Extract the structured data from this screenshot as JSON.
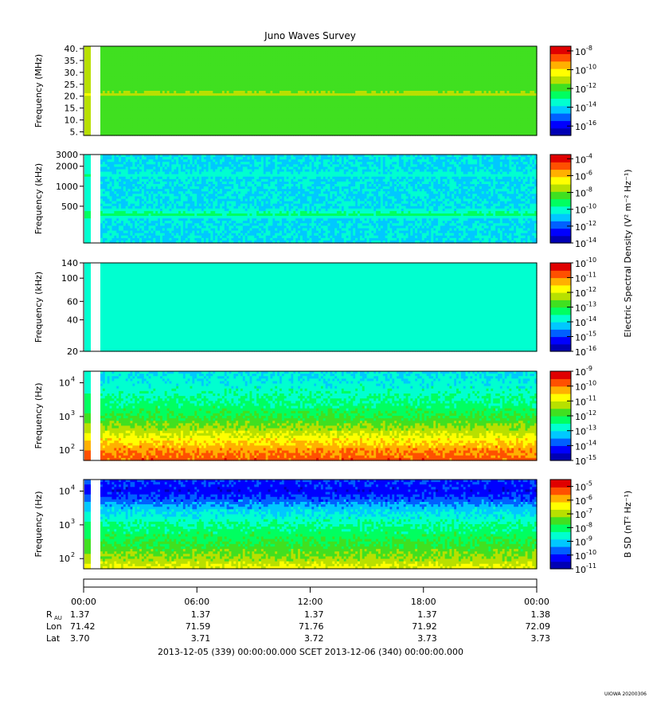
{
  "title": "Juno Waves Survey",
  "colormap": [
    "#0000b4",
    "#0000ff",
    "#0060ff",
    "#00c8ff",
    "#00ffd0",
    "#00ff60",
    "#40e020",
    "#b8e000",
    "#ffff00",
    "#ffb000",
    "#ff5000",
    "#e00000"
  ],
  "chart_data": [
    {
      "type": "heatmap",
      "name": "panel-1",
      "ylabel": "Frequency (MHz)",
      "yscale": "linear",
      "ylim": [
        3.5,
        41
      ],
      "yticks": [
        {
          "v": 5,
          "label": "5."
        },
        {
          "v": 10,
          "label": "10."
        },
        {
          "v": 15,
          "label": "15."
        },
        {
          "v": 20,
          "label": "20."
        },
        {
          "v": 25,
          "label": "25."
        },
        {
          "v": 30,
          "label": "30."
        },
        {
          "v": 35,
          "label": "35."
        },
        {
          "v": 40,
          "label": "40."
        }
      ],
      "colorbar": {
        "scale": "log",
        "range": [
          -17,
          -7.5
        ],
        "ticks": [
          {
            "e": -8
          },
          {
            "e": -10
          },
          {
            "e": -12
          },
          {
            "e": -14
          },
          {
            "e": -16
          }
        ],
        "label": ""
      },
      "background_level": 0.55,
      "bands": [
        {
          "f": 21,
          "level": 0.68,
          "w": 1.0
        },
        {
          "f": 9,
          "level": 0.49,
          "w": 0.6
        }
      ]
    },
    {
      "type": "heatmap",
      "name": "panel-2",
      "ylabel": "Frequency (kHz)",
      "yscale": "log",
      "ylim": [
        140,
        3000
      ],
      "yticks": [
        {
          "v": 500,
          "label": "500"
        },
        {
          "v": 1000,
          "label": "1000"
        },
        {
          "v": 2000,
          "label": "2000"
        },
        {
          "v": 3000,
          "label": "3000"
        }
      ],
      "colorbar": {
        "scale": "log",
        "range": [
          -14,
          -3.5
        ],
        "ticks": [
          {
            "e": -4
          },
          {
            "e": -6
          },
          {
            "e": -8
          },
          {
            "e": -10
          },
          {
            "e": -12
          },
          {
            "e": -14
          }
        ],
        "label": "Electric Spectral Density (V² m⁻² Hz⁻¹)"
      },
      "background_level": 0.33,
      "bands": [
        {
          "f": 1500,
          "level": 0.42,
          "w": 0.03
        },
        {
          "f": 380,
          "level": 0.45,
          "w": 0.08
        }
      ]
    },
    {
      "type": "heatmap",
      "name": "panel-3",
      "ylabel": "Frequency (kHz)",
      "yscale": "log",
      "ylim": [
        20,
        140
      ],
      "yticks": [
        {
          "v": 20,
          "label": "20"
        },
        {
          "v": 40,
          "label": "40"
        },
        {
          "v": 60,
          "label": "60"
        },
        {
          "v": 100,
          "label": "100"
        },
        {
          "v": 140,
          "label": "140"
        }
      ],
      "colorbar": {
        "scale": "log",
        "range": [
          -16,
          -10
        ],
        "ticks": [
          {
            "e": -10
          },
          {
            "e": -11
          },
          {
            "e": -12
          },
          {
            "e": -13
          },
          {
            "e": -14
          },
          {
            "e": -15
          },
          {
            "e": -16
          }
        ],
        "label": ""
      },
      "background_level": 0.36,
      "bands": []
    },
    {
      "type": "heatmap",
      "name": "panel-4",
      "ylabel": "Frequency (Hz)",
      "yscale": "log",
      "ylim": [
        50,
        22000
      ],
      "yticks": [
        {
          "v": 100,
          "label": "10",
          "sup": "2"
        },
        {
          "v": 1000,
          "label": "10",
          "sup": "3"
        },
        {
          "v": 10000,
          "label": "10",
          "sup": "4"
        }
      ],
      "colorbar": {
        "scale": "log",
        "range": [
          -15,
          -9
        ],
        "ticks": [
          {
            "e": -9
          },
          {
            "e": -10
          },
          {
            "e": -11
          },
          {
            "e": -12
          },
          {
            "e": -13
          },
          {
            "e": -14
          },
          {
            "e": -15
          }
        ],
        "label": ""
      },
      "profile": [
        [
          50,
          0.88
        ],
        [
          100,
          0.82
        ],
        [
          200,
          0.72
        ],
        [
          400,
          0.62
        ],
        [
          1000,
          0.5
        ],
        [
          3000,
          0.42
        ],
        [
          10000,
          0.36
        ],
        [
          22000,
          0.33
        ]
      ]
    },
    {
      "type": "heatmap",
      "name": "panel-5",
      "ylabel": "Frequency (Hz)",
      "yscale": "log",
      "ylim": [
        50,
        22000
      ],
      "yticks": [
        {
          "v": 100,
          "label": "10",
          "sup": "2"
        },
        {
          "v": 1000,
          "label": "10",
          "sup": "3"
        },
        {
          "v": 10000,
          "label": "10",
          "sup": "4"
        }
      ],
      "colorbar": {
        "scale": "log",
        "range": [
          -11,
          -4.5
        ],
        "ticks": [
          {
            "e": -5
          },
          {
            "e": -6
          },
          {
            "e": -7
          },
          {
            "e": -8
          },
          {
            "e": -9
          },
          {
            "e": -10
          },
          {
            "e": -11
          }
        ],
        "label": "B SD (nT² Hz⁻¹)"
      },
      "profile": [
        [
          50,
          0.7
        ],
        [
          100,
          0.6
        ],
        [
          300,
          0.5
        ],
        [
          1000,
          0.42
        ],
        [
          3000,
          0.3
        ],
        [
          6000,
          0.18
        ],
        [
          10000,
          0.12
        ],
        [
          22000,
          0.16
        ]
      ]
    }
  ],
  "time_axis": {
    "ticks": [
      "00:00",
      "06:00",
      "12:00",
      "18:00",
      "00:00"
    ],
    "rows": [
      {
        "label": "R",
        "sub": "AU",
        "values": [
          "1.37",
          "1.37",
          "1.37",
          "1.37",
          "1.38"
        ]
      },
      {
        "label": "Lon",
        "values": [
          "71.42",
          "71.59",
          "71.76",
          "71.92",
          "72.09"
        ]
      },
      {
        "label": "Lat",
        "values": [
          "3.70",
          "3.71",
          "3.72",
          "3.73",
          "3.73"
        ]
      }
    ],
    "caption": "2013-12-05 (339) 00:00:00.000     SCET     2013-12-06 (340) 00:00:00.000"
  },
  "footer": "UIOWA 20200306"
}
